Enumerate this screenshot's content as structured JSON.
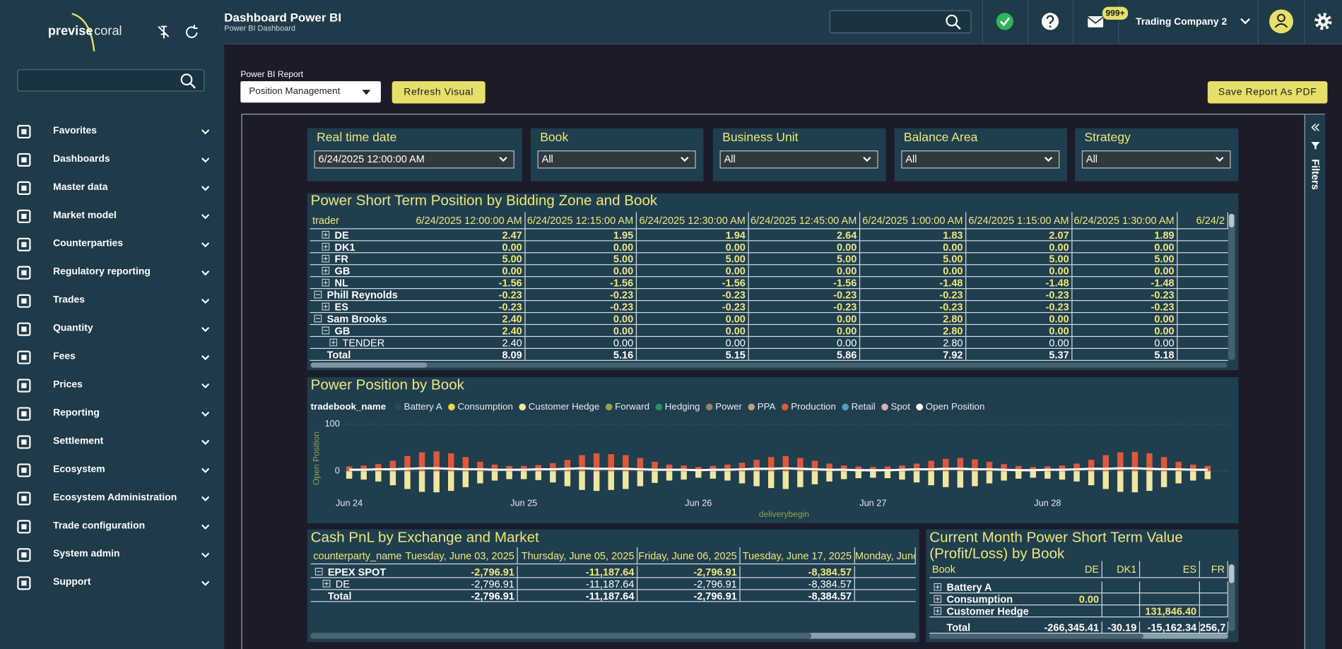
{
  "sidebar": {
    "logo": {
      "left": "previse",
      "right": "coral"
    },
    "menu": [
      "Favorites",
      "Dashboards",
      "Master data",
      "Market model",
      "Counterparties",
      "Regulatory reporting",
      "Trades",
      "Quantity",
      "Fees",
      "Prices",
      "Reporting",
      "Settlement",
      "Ecosystem",
      "Ecosystem Administration",
      "Trade configuration",
      "System admin",
      "Support"
    ]
  },
  "header": {
    "title": "Dashboard Power BI",
    "subtitle": "Power BI Dashboard",
    "mail_badge": "999+",
    "company": "Trading Company 2"
  },
  "toolbar": {
    "report_label": "Power BI Report",
    "report": "Position Management",
    "refresh": "Refresh Visual",
    "save": "Save Report As PDF"
  },
  "filters_pane": "Filters",
  "slicers": [
    {
      "label": "Real time date",
      "value": "6/24/2025 12:00:00 AM"
    },
    {
      "label": "Book",
      "value": "All"
    },
    {
      "label": "Business Unit",
      "value": "All"
    },
    {
      "label": "Balance Area",
      "value": "All"
    },
    {
      "label": "Strategy",
      "value": "All"
    }
  ],
  "position_table": {
    "title": "Power Short Term Position by Bidding Zone and Book",
    "columns": [
      "trader",
      "6/24/2025 12:00:00 AM",
      "6/24/2025 12:15:00 AM",
      "6/24/2025 12:30:00 AM",
      "6/24/2025 12:45:00 AM",
      "6/24/2025 1:00:00 AM",
      "6/24/2025 1:15:00 AM",
      "6/24/2025 1:30:00 AM",
      "6/24/2"
    ],
    "rows": [
      [
        "DE",
        "2.47",
        "1.95",
        "1.94",
        "2.64",
        "1.83",
        "2.07",
        "1.89"
      ],
      [
        "DK1",
        "0.00",
        "0.00",
        "0.00",
        "0.00",
        "0.00",
        "0.00",
        "0.00"
      ],
      [
        "FR",
        "5.00",
        "5.00",
        "5.00",
        "5.00",
        "5.00",
        "5.00",
        "5.00"
      ],
      [
        "GB",
        "0.00",
        "0.00",
        "0.00",
        "0.00",
        "0.00",
        "0.00",
        "0.00"
      ],
      [
        "NL",
        "-1.56",
        "-1.56",
        "-1.56",
        "-1.56",
        "-1.48",
        "-1.48",
        "-1.48"
      ],
      [
        "Phill Reynolds",
        "-0.23",
        "-0.23",
        "-0.23",
        "-0.23",
        "-0.23",
        "-0.23",
        "-0.23"
      ],
      [
        "ES",
        "-0.23",
        "-0.23",
        "-0.23",
        "-0.23",
        "-0.23",
        "-0.23",
        "-0.23"
      ],
      [
        "Sam Brooks",
        "2.40",
        "0.00",
        "0.00",
        "0.00",
        "2.80",
        "0.00",
        "0.00"
      ],
      [
        "GB",
        "2.40",
        "0.00",
        "0.00",
        "0.00",
        "2.80",
        "0.00",
        "0.00"
      ],
      [
        "TENDER",
        "2.40",
        "0.00",
        "0.00",
        "0.00",
        "2.80",
        "0.00",
        "0.00"
      ],
      [
        "Total",
        "8.09",
        "5.16",
        "5.15",
        "5.86",
        "7.92",
        "5.37",
        "5.18"
      ]
    ]
  },
  "chart_data": {
    "type": "bar",
    "title": "Power Position by Book",
    "legend_title": "tradebook_name",
    "y_label": "Open Position",
    "x_label": "deliverybegin",
    "categories": [
      "Jun 24",
      null,
      null,
      null,
      null,
      null,
      null,
      null,
      null,
      null,
      null,
      null,
      "Jun 25",
      null,
      null,
      null,
      null,
      null,
      null,
      null,
      null,
      null,
      null,
      null,
      "Jun 26",
      null,
      null,
      null,
      null,
      null,
      null,
      null,
      null,
      null,
      null,
      null,
      "Jun 27",
      null,
      null,
      null,
      null,
      null,
      null,
      null,
      null,
      null,
      null,
      null,
      "Jun 28",
      null,
      null,
      null,
      null,
      null,
      null,
      null,
      null,
      null,
      null,
      null
    ],
    "ylim": [
      -55,
      110
    ],
    "yticks": [
      0,
      100
    ],
    "grid": true,
    "series": [
      {
        "name": "Battery A",
        "color": "#1d4f5e"
      },
      {
        "name": "Consumption",
        "color": "#e6d84a"
      },
      {
        "name": "Customer Hedge",
        "color": "#efe6a0",
        "values": [
          -16,
          -18,
          -22,
          -30,
          -38,
          -44,
          -45,
          -42,
          -34,
          -26,
          -20,
          -17,
          -17,
          -19,
          -24,
          -32,
          -40,
          -42,
          -40,
          -38,
          -32,
          -25,
          -20,
          -18,
          -14,
          -16,
          -20,
          -26,
          -32,
          -36,
          -38,
          -34,
          -28,
          -22,
          -17,
          -15,
          -14,
          -15,
          -18,
          -24,
          -30,
          -34,
          -35,
          -32,
          -26,
          -20,
          -16,
          -14,
          -16,
          -18,
          -22,
          -30,
          -38,
          -44,
          -45,
          -42,
          -34,
          -26,
          -20,
          -17
        ]
      },
      {
        "name": "Forward",
        "color": "#8fa34a"
      },
      {
        "name": "Hedging",
        "color": "#2e8b6a"
      },
      {
        "name": "Power",
        "color": "#a08060"
      },
      {
        "name": "PPA",
        "color": "#b9a27a"
      },
      {
        "name": "Production",
        "color": "#e0583a",
        "values": [
          10,
          12,
          15,
          22,
          32,
          40,
          42,
          38,
          30,
          20,
          14,
          11,
          11,
          13,
          17,
          24,
          34,
          38,
          36,
          34,
          28,
          20,
          14,
          12,
          9,
          11,
          14,
          18,
          24,
          30,
          32,
          28,
          22,
          16,
          12,
          10,
          9,
          10,
          12,
          16,
          22,
          26,
          28,
          25,
          20,
          15,
          11,
          9,
          10,
          12,
          16,
          24,
          34,
          40,
          41,
          38,
          30,
          20,
          14,
          11
        ]
      },
      {
        "name": "Retail",
        "color": "#4aa0c0"
      },
      {
        "name": "Spot",
        "color": "#d8b0b0"
      },
      {
        "name": "Open Position",
        "color": "#ffffff",
        "type": "line",
        "values": [
          3,
          3,
          4,
          4,
          5,
          6,
          6,
          5,
          4,
          4,
          3,
          3,
          3,
          4,
          4,
          5,
          6,
          5,
          5,
          5,
          4,
          3,
          3,
          3,
          2,
          3,
          3,
          4,
          5,
          5,
          6,
          5,
          4,
          3,
          3,
          2,
          2,
          2,
          3,
          4,
          4,
          5,
          5,
          4,
          4,
          3,
          2,
          2,
          3,
          3,
          4,
          5,
          5,
          6,
          6,
          5,
          4,
          4,
          3,
          3
        ]
      }
    ]
  },
  "pnl_table": {
    "title": "Cash PnL by Exchange and Market",
    "columns": [
      "counterparty_name",
      "Tuesday, June 03, 2025",
      "Thursday, June 05, 2025",
      "Friday, June 06, 2025",
      "Tuesday, June 17, 2025",
      "Monday, June"
    ],
    "rows": [
      [
        "EPEX SPOT",
        "-2,796.91",
        "-11,187.64",
        "-2,796.91",
        "-8,384.57"
      ],
      [
        "DE",
        "-2,796.91",
        "-11,187.64",
        "-2,796.91",
        "-8,384.57"
      ],
      [
        "Total",
        "-2,796.91",
        "-11,187.64",
        "-2,796.91",
        "-8,384.57"
      ]
    ]
  },
  "value_table": {
    "title": "Current Month Power Short Term Value (Profit/Loss) by Book",
    "columns": [
      "Book",
      "DE",
      "DK1",
      "ES",
      "FR"
    ],
    "rows": [
      [
        "Battery A",
        "",
        "",
        "",
        ""
      ],
      [
        "Consumption",
        "0.00",
        "",
        "",
        ""
      ],
      [
        "Customer Hedge",
        "",
        "",
        "131,846.40",
        ""
      ],
      [
        "Total",
        "-266,345.41",
        "-30.19",
        "-15,162.34",
        "256,7"
      ]
    ]
  }
}
